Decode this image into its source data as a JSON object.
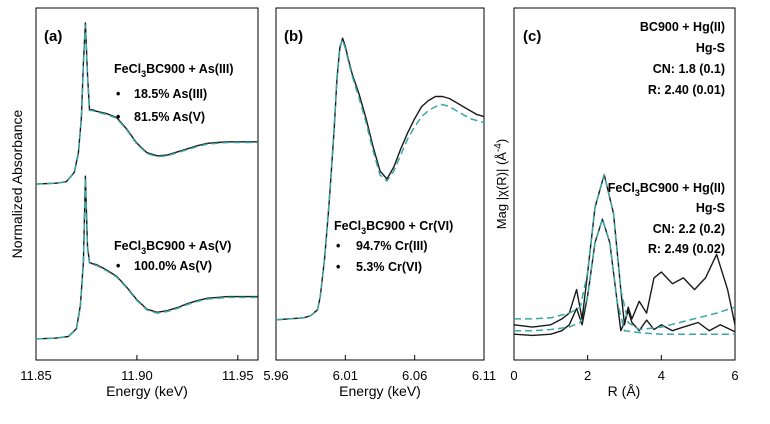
{
  "colors": {
    "measured": "#1a1a1a",
    "fit": "#3aa6a6",
    "axis": "#000000",
    "background": "#ffffff"
  },
  "ylabels": {
    "a": "Normalized Absorbance",
    "c_prefix": "Mag |χ(R)| (Å",
    "c_exp": "-4",
    "c_suffix": ")"
  },
  "chart_data": [
    {
      "id": "a",
      "type": "line",
      "panel_label": "(a)",
      "xlabel": "Energy (keV)",
      "ylabel": "Normalized Absorbance",
      "xlim": [
        11.85,
        11.96
      ],
      "xticks": [
        "11.85",
        "11.90",
        "11.95"
      ],
      "xtick_values": [
        11.85,
        11.9,
        11.95
      ],
      "annotations": [
        {
          "title_main": "FeCl",
          "title_sub": "3",
          "title_rest": "BC900 + As(III)",
          "items": [
            "18.5% As(III)",
            "81.5% As(V)"
          ]
        },
        {
          "title_main": "FeCl",
          "title_sub": "3",
          "title_rest": "BC900 + As(V)",
          "items": [
            "100.0% As(V)"
          ]
        }
      ],
      "series": [
        {
          "name": "FeCl3BC900 + As(III) measured",
          "style": "solid",
          "x": [
            11.85,
            11.86,
            11.865,
            11.869,
            11.871,
            11.8725,
            11.8735,
            11.8745,
            11.8755,
            11.8765,
            11.878,
            11.88,
            11.885,
            11.89,
            11.895,
            11.9,
            11.905,
            11.91,
            11.915,
            11.92,
            11.925,
            11.93,
            11.935,
            11.94,
            11.945,
            11.95,
            11.955,
            11.96
          ],
          "y": [
            0.0,
            0.01,
            0.03,
            0.15,
            0.4,
            0.85,
            1.55,
            2.06,
            1.4,
            0.95,
            0.95,
            0.93,
            0.9,
            0.85,
            0.7,
            0.52,
            0.4,
            0.36,
            0.37,
            0.41,
            0.45,
            0.49,
            0.52,
            0.53,
            0.54,
            0.54,
            0.54,
            0.54
          ]
        },
        {
          "name": "FeCl3BC900 + As(III) fit",
          "style": "dashed",
          "x": [
            11.85,
            11.86,
            11.865,
            11.869,
            11.871,
            11.8725,
            11.8735,
            11.8745,
            11.8755,
            11.8765,
            11.878,
            11.88,
            11.885,
            11.89,
            11.895,
            11.9,
            11.905,
            11.91,
            11.915,
            11.92,
            11.925,
            11.93,
            11.935,
            11.94,
            11.945,
            11.95,
            11.955,
            11.96
          ],
          "y": [
            0.0,
            0.01,
            0.03,
            0.14,
            0.38,
            0.83,
            1.52,
            2.03,
            1.38,
            0.94,
            0.94,
            0.92,
            0.89,
            0.84,
            0.69,
            0.51,
            0.39,
            0.35,
            0.36,
            0.4,
            0.44,
            0.48,
            0.51,
            0.52,
            0.53,
            0.53,
            0.53,
            0.53
          ]
        },
        {
          "name": "FeCl3BC900 + As(V) measured",
          "style": "solid",
          "x": [
            11.85,
            11.86,
            11.866,
            11.87,
            11.872,
            11.8735,
            11.8745,
            11.8755,
            11.8765,
            11.878,
            11.88,
            11.885,
            11.89,
            11.895,
            11.9,
            11.905,
            11.91,
            11.915,
            11.92,
            11.925,
            11.93,
            11.935,
            11.94,
            11.945,
            11.95,
            11.955,
            11.96
          ],
          "y": [
            -1.98,
            -1.97,
            -1.95,
            -1.85,
            -1.55,
            -1.0,
            0.1,
            -0.8,
            -1.0,
            -1.02,
            -1.03,
            -1.1,
            -1.18,
            -1.32,
            -1.48,
            -1.6,
            -1.64,
            -1.62,
            -1.58,
            -1.53,
            -1.49,
            -1.46,
            -1.45,
            -1.44,
            -1.44,
            -1.44,
            -1.44
          ]
        },
        {
          "name": "FeCl3BC900 + As(V) fit",
          "style": "dashed",
          "x": [
            11.85,
            11.86,
            11.866,
            11.87,
            11.872,
            11.8735,
            11.8745,
            11.8755,
            11.8765,
            11.878,
            11.88,
            11.885,
            11.89,
            11.895,
            11.9,
            11.905,
            11.91,
            11.915,
            11.92,
            11.925,
            11.93,
            11.935,
            11.94,
            11.945,
            11.95,
            11.955,
            11.96
          ],
          "y": [
            -1.98,
            -1.97,
            -1.95,
            -1.86,
            -1.57,
            -1.02,
            0.08,
            -0.82,
            -1.01,
            -1.03,
            -1.04,
            -1.11,
            -1.19,
            -1.33,
            -1.49,
            -1.61,
            -1.65,
            -1.63,
            -1.59,
            -1.54,
            -1.5,
            -1.47,
            -1.46,
            -1.45,
            -1.45,
            -1.45,
            -1.45
          ]
        }
      ],
      "ylim": [
        -2.25,
        2.25
      ]
    },
    {
      "id": "b",
      "type": "line",
      "panel_label": "(b)",
      "xlabel": "Energy (keV)",
      "xlim": [
        5.96,
        6.11
      ],
      "xticks": [
        "5.96",
        "6.01",
        "6.06",
        "6.11"
      ],
      "xtick_values": [
        5.96,
        6.01,
        6.06,
        6.11
      ],
      "annotations": [
        {
          "title_main": "FeCl",
          "title_sub": "3",
          "title_rest": "BC900 + Cr(VI)",
          "items": [
            "94.7% Cr(III)",
            "5.3% Cr(VI)"
          ]
        }
      ],
      "series": [
        {
          "name": "FeCl3BC900 + Cr(VI) measured",
          "style": "solid",
          "x": [
            5.96,
            5.98,
            5.985,
            5.99,
            5.992,
            5.995,
            5.998,
            6.0,
            6.002,
            6.004,
            6.006,
            6.008,
            6.01,
            6.012,
            6.015,
            6.02,
            6.025,
            6.03,
            6.035,
            6.04,
            6.045,
            6.05,
            6.055,
            6.06,
            6.065,
            6.07,
            6.075,
            6.08,
            6.085,
            6.09,
            6.095,
            6.1,
            6.105,
            6.11
          ],
          "y": [
            0.0,
            0.01,
            0.02,
            0.05,
            0.12,
            0.3,
            0.55,
            0.75,
            0.95,
            1.2,
            1.35,
            1.4,
            1.36,
            1.3,
            1.22,
            1.12,
            1.0,
            0.86,
            0.74,
            0.7,
            0.76,
            0.85,
            0.93,
            1.0,
            1.06,
            1.09,
            1.11,
            1.11,
            1.1,
            1.08,
            1.06,
            1.04,
            1.02,
            1.01
          ]
        },
        {
          "name": "FeCl3BC900 + Cr(VI) fit",
          "style": "dashed",
          "x": [
            5.96,
            5.98,
            5.985,
            5.99,
            5.992,
            5.995,
            5.998,
            6.0,
            6.002,
            6.004,
            6.006,
            6.008,
            6.01,
            6.012,
            6.015,
            6.02,
            6.025,
            6.03,
            6.035,
            6.04,
            6.045,
            6.05,
            6.055,
            6.06,
            6.065,
            6.07,
            6.075,
            6.08,
            6.085,
            6.09,
            6.095,
            6.1,
            6.105,
            6.11
          ],
          "y": [
            0.0,
            0.01,
            0.02,
            0.05,
            0.12,
            0.3,
            0.56,
            0.76,
            0.96,
            1.21,
            1.36,
            1.39,
            1.35,
            1.29,
            1.21,
            1.1,
            0.98,
            0.84,
            0.72,
            0.69,
            0.74,
            0.82,
            0.9,
            0.96,
            1.01,
            1.04,
            1.06,
            1.07,
            1.06,
            1.04,
            1.02,
            1.0,
            0.99,
            0.98
          ]
        }
      ],
      "ylim": [
        -0.2,
        1.55
      ]
    },
    {
      "id": "c",
      "type": "line",
      "panel_label": "(c)",
      "xlabel": "R (Å)",
      "ylabel": "Mag |χ(R)| (Å-4)",
      "xlim": [
        0,
        6
      ],
      "xticks": [
        "0",
        "2",
        "4",
        "6"
      ],
      "xtick_values": [
        0,
        2,
        4,
        6
      ],
      "annotations": [
        {
          "title_main": "BC900 + Hg(II)",
          "title_sub": "",
          "title_rest": "",
          "lines": [
            "Hg-S",
            "CN: 1.8 (0.1)",
            "R: 2.40 (0.01)"
          ]
        },
        {
          "title_main": "FeCl",
          "title_sub": "3",
          "title_rest": "BC900 + Hg(II)",
          "lines": [
            "Hg-S",
            "CN: 2.2 (0.2)",
            "R: 2.49 (0.02)"
          ]
        }
      ],
      "series": [
        {
          "name": "BC900 + Hg(II) measured",
          "style": "solid",
          "x": [
            0.0,
            0.5,
            1.0,
            1.3,
            1.5,
            1.7,
            1.85,
            2.0,
            2.2,
            2.4,
            2.6,
            2.8,
            2.9,
            3.0,
            3.1,
            3.2,
            3.4,
            3.6,
            3.8,
            4.0,
            4.3,
            4.6,
            5.0,
            5.3,
            5.6,
            6.0
          ],
          "y": [
            0.02,
            0.01,
            0.02,
            0.05,
            0.1,
            0.24,
            0.1,
            0.35,
            0.8,
            1.0,
            0.8,
            0.3,
            0.05,
            0.12,
            0.22,
            0.12,
            0.05,
            0.14,
            0.06,
            0.1,
            0.05,
            0.08,
            0.12,
            0.05,
            0.1,
            0.04
          ]
        },
        {
          "name": "BC900 + Hg(II) fit",
          "style": "dashed",
          "x": [
            0.0,
            0.5,
            1.0,
            1.5,
            1.8,
            2.0,
            2.2,
            2.4,
            2.6,
            2.8,
            3.0,
            3.2,
            3.5,
            4.0,
            5.0,
            6.0
          ],
          "y": [
            0.05,
            0.05,
            0.06,
            0.08,
            0.12,
            0.35,
            0.8,
            1.0,
            0.8,
            0.3,
            0.05,
            0.04,
            0.03,
            0.02,
            0.02,
            0.02
          ]
        },
        {
          "name": "FeCl3BC900 + Hg(II) measured",
          "style": "solid",
          "x": [
            0.0,
            0.5,
            1.0,
            1.3,
            1.5,
            1.7,
            1.85,
            2.0,
            2.2,
            2.45,
            2.7,
            2.9,
            3.0,
            3.1,
            3.2,
            3.4,
            3.6,
            3.8,
            4.0,
            4.3,
            4.6,
            4.9,
            5.2,
            5.5,
            5.8,
            6.0
          ],
          "y": [
            0.1,
            0.08,
            0.1,
            0.15,
            0.2,
            0.4,
            0.15,
            0.55,
            1.1,
            1.38,
            1.05,
            0.4,
            0.1,
            0.25,
            0.15,
            0.3,
            0.2,
            0.5,
            0.55,
            0.45,
            0.5,
            0.4,
            0.5,
            0.7,
            0.4,
            0.1
          ]
        },
        {
          "name": "FeCl3BC900 + Hg(II) fit",
          "style": "dashed",
          "x": [
            0.0,
            0.5,
            1.0,
            1.5,
            1.8,
            2.0,
            2.2,
            2.45,
            2.7,
            2.9,
            3.1,
            3.4,
            4.0,
            4.5,
            5.0,
            5.5,
            6.0
          ],
          "y": [
            0.15,
            0.15,
            0.16,
            0.2,
            0.25,
            0.55,
            1.1,
            1.38,
            1.05,
            0.4,
            0.12,
            0.06,
            0.08,
            0.12,
            0.16,
            0.2,
            0.25
          ]
        }
      ],
      "ylim": [
        -0.2,
        2.8
      ]
    }
  ]
}
